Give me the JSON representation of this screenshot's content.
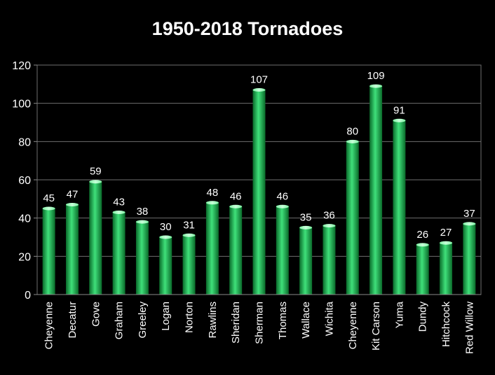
{
  "chart_data": {
    "type": "bar",
    "title": "1950-2018 Tornadoes",
    "xlabel": "",
    "ylabel": "",
    "ylim": [
      0,
      120
    ],
    "yticks": [
      0,
      20,
      40,
      60,
      80,
      100,
      120
    ],
    "grid": true,
    "legend": "none",
    "bar_color": "#1fa84a",
    "categories": [
      "Cheyenne",
      "Decatur",
      "Gove",
      "Graham",
      "Greeley",
      "Logan",
      "Norton",
      "Rawlins",
      "Sheridan",
      "Sherman",
      "Thomas",
      "Wallace",
      "Wichita",
      "Cheyenne",
      "Kit Carson",
      "Yuma",
      "Dundy",
      "Hitchcock",
      "Red Willow"
    ],
    "values": [
      45,
      47,
      59,
      43,
      38,
      30,
      31,
      48,
      46,
      107,
      46,
      35,
      36,
      80,
      109,
      91,
      26,
      27,
      37
    ]
  }
}
